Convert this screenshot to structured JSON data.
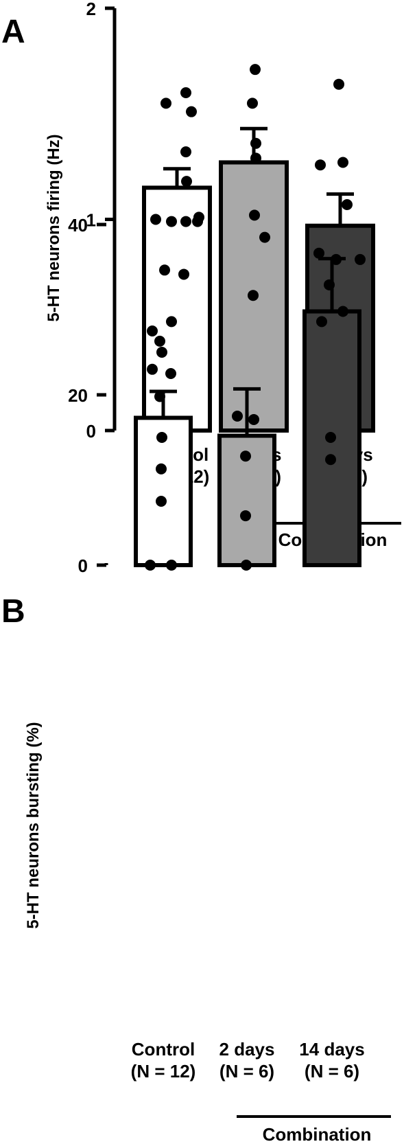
{
  "chart_data": [
    {
      "panel": "A",
      "type": "bar",
      "ylabel": "5-HT neurons firing (Hz)",
      "ylim": [
        0,
        2
      ],
      "yticks": [
        "0",
        "1",
        "2"
      ],
      "categories": [
        {
          "line1": "Control",
          "line2": "(N = 12)"
        },
        {
          "line1": "2 days",
          "line2": "(N = 6)"
        },
        {
          "line1": "14 days",
          "line2": "(N = 6)"
        }
      ],
      "group_label": "Combination",
      "values": [
        1.15,
        1.27,
        0.97
      ],
      "errors": [
        0.09,
        0.16,
        0.15
      ],
      "colors": [
        "#ffffff",
        "#a9a9a9",
        "#3c3c3c"
      ],
      "points": [
        [
          1.6,
          1.55,
          1.51,
          1.32,
          1.18,
          1.0,
          0.99,
          0.99,
          0.99,
          1.01,
          0.76,
          0.74
        ],
        [
          1.71,
          1.55,
          1.36,
          1.29,
          1.02,
          0.64
        ],
        [
          1.64,
          1.07,
          0.84,
          0.81,
          0.81,
          0.69
        ]
      ]
    },
    {
      "panel": "B",
      "type": "bar",
      "ylabel": "5-HT neurons bursting (%)",
      "ylim": [
        0,
        50
      ],
      "yticks": [
        "0",
        "20",
        "40"
      ],
      "categories": [
        {
          "line1": "Control",
          "line2": "(N = 12)"
        },
        {
          "line1": "2 days",
          "line2": "(N = 6)"
        },
        {
          "line1": "14 days",
          "line2": "(N = 6)"
        }
      ],
      "group_label": "Combination",
      "values": [
        17.3,
        15.2,
        29.8
      ],
      "errors": [
        3.1,
        5.5,
        6.2
      ],
      "colors": [
        "#ffffff",
        "#a9a9a9",
        "#3c3c3c"
      ],
      "points": [
        [
          28.6,
          27.5,
          26.3,
          25.0,
          23.0,
          22.5,
          19.8,
          15.0,
          11.3,
          7.5,
          0,
          0
        ],
        [
          38.5,
          17.5,
          17.1,
          12.8,
          5.8,
          0
        ],
        [
          47.0,
          47.3,
          29.8,
          28.6,
          15.0,
          12.4
        ]
      ]
    }
  ]
}
